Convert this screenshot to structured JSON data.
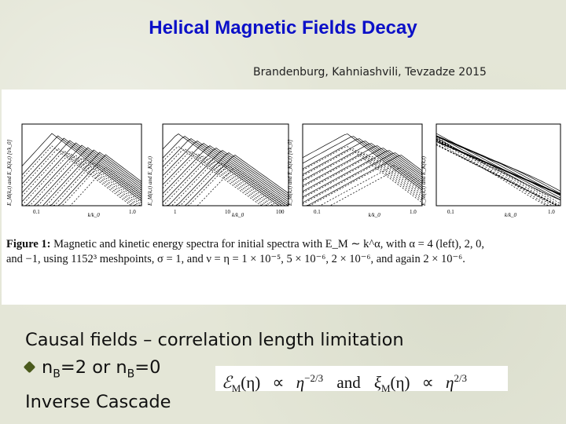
{
  "slide": {
    "title": "Helical Magnetic Fields Decay",
    "authors": "Brandenburg, Kahniashvili, Tevzadze 2015"
  },
  "figure": {
    "panels": [
      {
        "ylabel": "E_M(k,t) and E_K(k,t) [t/k_0]",
        "xlabel": "k/k_0",
        "xticks": [
          "0.1",
          "1.0"
        ]
      },
      {
        "ylabel": "E_M(k,t) and E_K(k,t)",
        "xlabel": "k/k_0",
        "xticks": [
          "1",
          "10",
          "100"
        ]
      },
      {
        "ylabel": "E_M(k,t) and E_K(k,t) [t/k_0]",
        "xlabel": "k/k_0",
        "xticks": [
          "0.1",
          "1.0"
        ]
      },
      {
        "ylabel": "E_M(k,t) and E_K(k,t)",
        "xlabel": "k/k_0",
        "xticks": [
          "0.1",
          "1.0"
        ]
      }
    ],
    "caption_label": "Figure 1:",
    "caption_line1": "Magnetic and kinetic energy spectra for initial spectra with E_M ∼ k^α, with α = 4 (left), 2, 0,",
    "caption_line2": "and −1, using 1152³ meshpoints, σ = 1, and ν = η = 1 × 10⁻⁵, 5 × 10⁻⁶, 2 × 10⁻⁶, and again 2 × 10⁻⁶."
  },
  "body": {
    "line1": "Causal fields – correlation length limitation",
    "line2_prefix": "n",
    "line2_sub1": "B",
    "line2_mid": "=2 or n",
    "line2_sub2": "B",
    "line2_suffix": "=0",
    "line3": "Inverse Cascade"
  },
  "equation": {
    "lhs1": "ℰ",
    "lhs1_sub": "M",
    "lhs1_arg": "(η)",
    "prop1": "∝",
    "rhs1": "η",
    "rhs1_exp": "−2/3",
    "and": "and",
    "lhs2": "ξ",
    "lhs2_sub": "M",
    "lhs2_arg": "(η)",
    "prop2": "∝",
    "rhs2": "η",
    "rhs2_exp": "2/3"
  },
  "colors": {
    "title": "#0b10c8",
    "background": "#e4e6d7",
    "bullet": "#4a5a1c"
  }
}
